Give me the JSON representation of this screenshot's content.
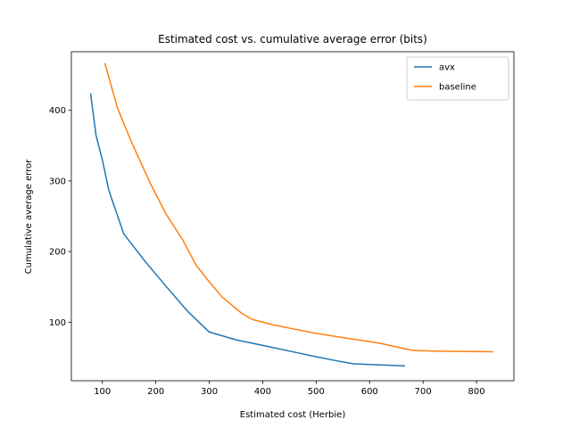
{
  "chart_data": {
    "type": "line",
    "title": "Estimated cost vs. cumulative average error (bits)",
    "xlabel": "Estimated cost (Herbie)",
    "ylabel": "Cumulative average error",
    "xlim": [
      42,
      870
    ],
    "ylim": [
      17,
      483
    ],
    "xticks": [
      100,
      200,
      300,
      400,
      500,
      600,
      700,
      800
    ],
    "yticks": [
      100,
      200,
      300,
      400
    ],
    "grid": false,
    "legend_position": "top-right",
    "series": [
      {
        "name": "avx",
        "color": "#1f77b4",
        "points": [
          [
            78,
            423
          ],
          [
            88,
            365
          ],
          [
            100,
            330
          ],
          [
            112,
            287
          ],
          [
            140,
            225
          ],
          [
            180,
            186
          ],
          [
            220,
            150
          ],
          [
            260,
            115
          ],
          [
            300,
            86
          ],
          [
            350,
            75
          ],
          [
            400,
            67
          ],
          [
            450,
            59
          ],
          [
            500,
            51
          ],
          [
            540,
            45
          ],
          [
            570,
            41
          ],
          [
            600,
            40
          ],
          [
            665,
            38
          ]
        ]
      },
      {
        "name": "baseline",
        "color": "#ff7f0e",
        "points": [
          [
            105,
            466
          ],
          [
            128,
            404
          ],
          [
            155,
            354
          ],
          [
            190,
            296
          ],
          [
            220,
            252
          ],
          [
            250,
            217
          ],
          [
            275,
            181
          ],
          [
            300,
            157
          ],
          [
            325,
            135
          ],
          [
            360,
            113
          ],
          [
            380,
            104
          ],
          [
            420,
            96
          ],
          [
            460,
            90
          ],
          [
            500,
            84
          ],
          [
            560,
            77
          ],
          [
            620,
            70
          ],
          [
            680,
            60
          ],
          [
            720,
            59
          ],
          [
            830,
            58
          ]
        ]
      }
    ]
  }
}
